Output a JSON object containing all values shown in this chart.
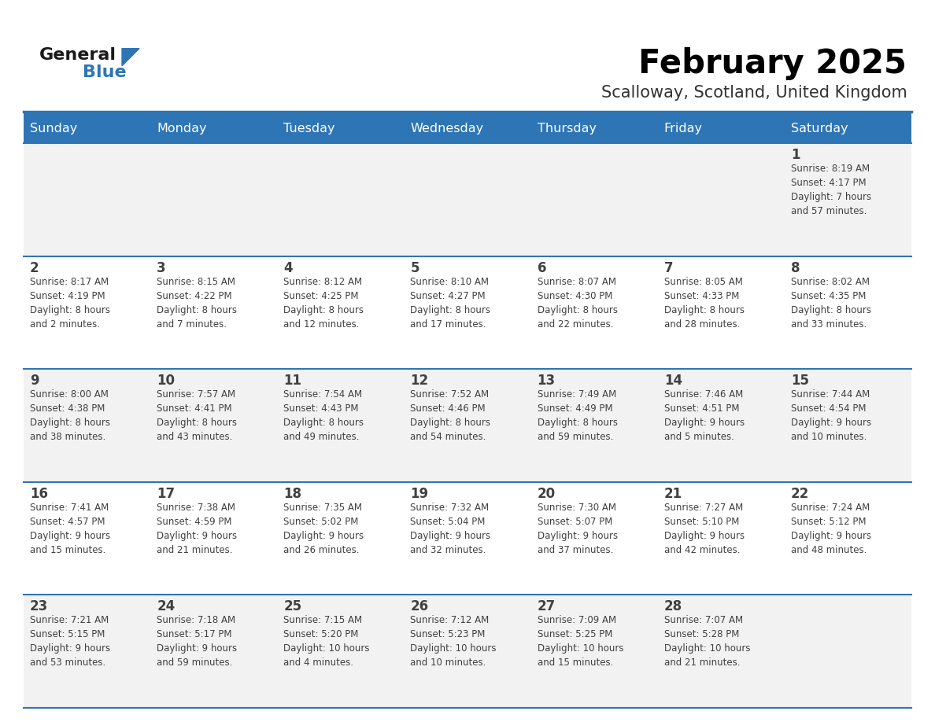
{
  "title": "February 2025",
  "subtitle": "Scalloway, Scotland, United Kingdom",
  "days_of_week": [
    "Sunday",
    "Monday",
    "Tuesday",
    "Wednesday",
    "Thursday",
    "Friday",
    "Saturday"
  ],
  "header_bg": "#2E75B6",
  "header_text_color": "#FFFFFF",
  "cell_bg_odd": "#F2F2F2",
  "cell_bg_even": "#FFFFFF",
  "grid_line_color": "#2E75B6",
  "text_color": "#404040",
  "day_number_color": "#404040",
  "logo_general_color": "#1a1a1a",
  "logo_blue_color": "#2E75B6",
  "calendar_data": [
    [
      null,
      null,
      null,
      null,
      null,
      null,
      {
        "day": "1",
        "sunrise": "8:19 AM",
        "sunset": "4:17 PM",
        "daylight": "7 hours",
        "daylight2": "and 57 minutes."
      }
    ],
    [
      {
        "day": "2",
        "sunrise": "8:17 AM",
        "sunset": "4:19 PM",
        "daylight": "8 hours",
        "daylight2": "and 2 minutes."
      },
      {
        "day": "3",
        "sunrise": "8:15 AM",
        "sunset": "4:22 PM",
        "daylight": "8 hours",
        "daylight2": "and 7 minutes."
      },
      {
        "day": "4",
        "sunrise": "8:12 AM",
        "sunset": "4:25 PM",
        "daylight": "8 hours",
        "daylight2": "and 12 minutes."
      },
      {
        "day": "5",
        "sunrise": "8:10 AM",
        "sunset": "4:27 PM",
        "daylight": "8 hours",
        "daylight2": "and 17 minutes."
      },
      {
        "day": "6",
        "sunrise": "8:07 AM",
        "sunset": "4:30 PM",
        "daylight": "8 hours",
        "daylight2": "and 22 minutes."
      },
      {
        "day": "7",
        "sunrise": "8:05 AM",
        "sunset": "4:33 PM",
        "daylight": "8 hours",
        "daylight2": "and 28 minutes."
      },
      {
        "day": "8",
        "sunrise": "8:02 AM",
        "sunset": "4:35 PM",
        "daylight": "8 hours",
        "daylight2": "and 33 minutes."
      }
    ],
    [
      {
        "day": "9",
        "sunrise": "8:00 AM",
        "sunset": "4:38 PM",
        "daylight": "8 hours",
        "daylight2": "and 38 minutes."
      },
      {
        "day": "10",
        "sunrise": "7:57 AM",
        "sunset": "4:41 PM",
        "daylight": "8 hours",
        "daylight2": "and 43 minutes."
      },
      {
        "day": "11",
        "sunrise": "7:54 AM",
        "sunset": "4:43 PM",
        "daylight": "8 hours",
        "daylight2": "and 49 minutes."
      },
      {
        "day": "12",
        "sunrise": "7:52 AM",
        "sunset": "4:46 PM",
        "daylight": "8 hours",
        "daylight2": "and 54 minutes."
      },
      {
        "day": "13",
        "sunrise": "7:49 AM",
        "sunset": "4:49 PM",
        "daylight": "8 hours",
        "daylight2": "and 59 minutes."
      },
      {
        "day": "14",
        "sunrise": "7:46 AM",
        "sunset": "4:51 PM",
        "daylight": "9 hours",
        "daylight2": "and 5 minutes."
      },
      {
        "day": "15",
        "sunrise": "7:44 AM",
        "sunset": "4:54 PM",
        "daylight": "9 hours",
        "daylight2": "and 10 minutes."
      }
    ],
    [
      {
        "day": "16",
        "sunrise": "7:41 AM",
        "sunset": "4:57 PM",
        "daylight": "9 hours",
        "daylight2": "and 15 minutes."
      },
      {
        "day": "17",
        "sunrise": "7:38 AM",
        "sunset": "4:59 PM",
        "daylight": "9 hours",
        "daylight2": "and 21 minutes."
      },
      {
        "day": "18",
        "sunrise": "7:35 AM",
        "sunset": "5:02 PM",
        "daylight": "9 hours",
        "daylight2": "and 26 minutes."
      },
      {
        "day": "19",
        "sunrise": "7:32 AM",
        "sunset": "5:04 PM",
        "daylight": "9 hours",
        "daylight2": "and 32 minutes."
      },
      {
        "day": "20",
        "sunrise": "7:30 AM",
        "sunset": "5:07 PM",
        "daylight": "9 hours",
        "daylight2": "and 37 minutes."
      },
      {
        "day": "21",
        "sunrise": "7:27 AM",
        "sunset": "5:10 PM",
        "daylight": "9 hours",
        "daylight2": "and 42 minutes."
      },
      {
        "day": "22",
        "sunrise": "7:24 AM",
        "sunset": "5:12 PM",
        "daylight": "9 hours",
        "daylight2": "and 48 minutes."
      }
    ],
    [
      {
        "day": "23",
        "sunrise": "7:21 AM",
        "sunset": "5:15 PM",
        "daylight": "9 hours",
        "daylight2": "and 53 minutes."
      },
      {
        "day": "24",
        "sunrise": "7:18 AM",
        "sunset": "5:17 PM",
        "daylight": "9 hours",
        "daylight2": "and 59 minutes."
      },
      {
        "day": "25",
        "sunrise": "7:15 AM",
        "sunset": "5:20 PM",
        "daylight": "10 hours",
        "daylight2": "and 4 minutes."
      },
      {
        "day": "26",
        "sunrise": "7:12 AM",
        "sunset": "5:23 PM",
        "daylight": "10 hours",
        "daylight2": "and 10 minutes."
      },
      {
        "day": "27",
        "sunrise": "7:09 AM",
        "sunset": "5:25 PM",
        "daylight": "10 hours",
        "daylight2": "and 15 minutes."
      },
      {
        "day": "28",
        "sunrise": "7:07 AM",
        "sunset": "5:28 PM",
        "daylight": "10 hours",
        "daylight2": "and 21 minutes."
      },
      null
    ]
  ],
  "figsize": [
    11.88,
    9.18
  ],
  "dpi": 100
}
